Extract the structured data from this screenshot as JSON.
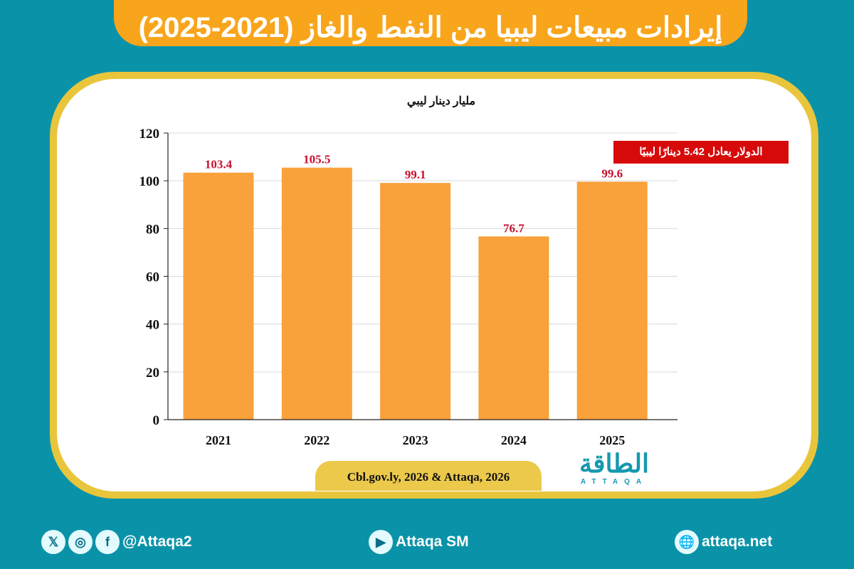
{
  "title": "إيرادات مبيعات ليبيا من النفط والغاز (2021-2025)",
  "note": "الدولار يعادل 5.42 دينارًا ليبيًا",
  "source": "Cbl.gov.ly, 2026 & Attaqa, 2026",
  "logo": {
    "ar": "الطاقة",
    "en": "ATTAQA"
  },
  "colors": {
    "background": "#0a93a8",
    "title_bar": "#f8a51c",
    "bar": "#f9a13a",
    "value_label": "#c8102e",
    "note_bg": "#d70a0a"
  },
  "footer": {
    "social_handle": "@Attaqa2",
    "youtube": "Attaqa SM",
    "website": "attaqa.net",
    "icons": [
      "x-icon",
      "instagram-icon",
      "facebook-icon",
      "youtube-icon",
      "globe-icon"
    ]
  },
  "chart_data": {
    "type": "bar",
    "ylabel": "مليار دينار ليبي",
    "categories": [
      "2021",
      "2022",
      "2023",
      "2024",
      "2025"
    ],
    "values": [
      103.4,
      105.5,
      99.1,
      76.7,
      99.6
    ],
    "value_labels": [
      "103.4",
      "105.5",
      "99.1",
      "76.7",
      "99.6"
    ],
    "ylim": [
      0,
      120
    ],
    "yticks": [
      0,
      20,
      40,
      60,
      80,
      100,
      120
    ],
    "grid": true
  }
}
